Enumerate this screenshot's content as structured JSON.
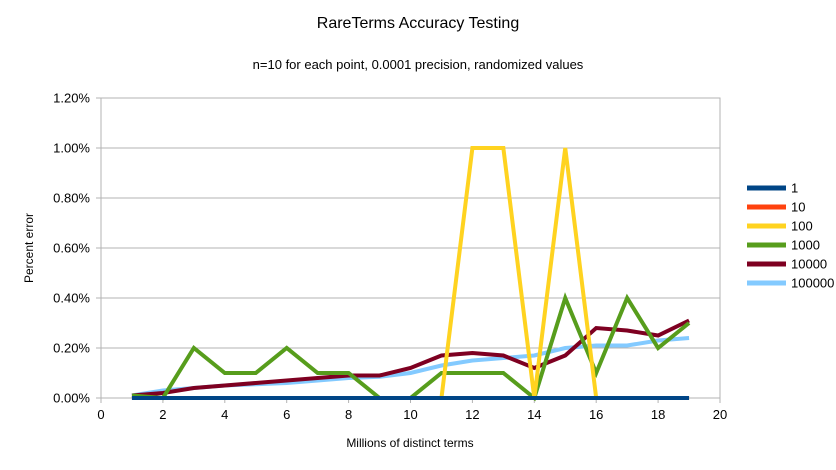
{
  "title": "RareTerms Accuracy Testing",
  "subtitle": "n=10 for each point, 0.0001 precision, randomized values",
  "chart_data": {
    "type": "line",
    "title": "RareTerms Accuracy Testing",
    "subtitle": "n=10 for each point, 0.0001 precision, randomized values",
    "xlabel": "Millions of distinct terms",
    "ylabel": "Percent error",
    "xlim": [
      0,
      20
    ],
    "ylim": [
      0,
      1.2
    ],
    "grid": "horizontal",
    "legend_position": "right",
    "x_ticks": [
      0,
      2,
      4,
      6,
      8,
      10,
      12,
      14,
      16,
      18,
      20
    ],
    "x_tick_labels": [
      "0",
      "2",
      "4",
      "6",
      "8",
      "10",
      "12",
      "14",
      "16",
      "18",
      "20"
    ],
    "y_ticks": [
      0,
      0.2,
      0.4,
      0.6,
      0.8,
      1.0,
      1.2
    ],
    "y_tick_labels": [
      "0.00%",
      "0.20%",
      "0.40%",
      "0.60%",
      "0.80%",
      "1.00%",
      "1.20%"
    ],
    "x": [
      1,
      2,
      3,
      4,
      5,
      6,
      7,
      8,
      9,
      10,
      11,
      12,
      13,
      14,
      15,
      16,
      17,
      18,
      19
    ],
    "series": [
      {
        "name": "1",
        "color": "#004586",
        "values": [
          0,
          0,
          0,
          0,
          0,
          0,
          0,
          0,
          0,
          0,
          0,
          0,
          0,
          0,
          0,
          0,
          0,
          0,
          0
        ]
      },
      {
        "name": "10",
        "color": "#FF420E",
        "values": [
          0,
          0,
          0,
          0,
          0,
          0,
          0,
          0,
          0,
          0,
          0,
          0,
          0,
          0,
          0,
          0,
          0,
          0,
          0
        ]
      },
      {
        "name": "100",
        "color": "#FFD320",
        "values": [
          0,
          0,
          0,
          0,
          0,
          0,
          0,
          0,
          0,
          0,
          0,
          1.0,
          1.0,
          0,
          1.0,
          0,
          0,
          0,
          0
        ]
      },
      {
        "name": "1000",
        "color": "#579D1C",
        "values": [
          0.01,
          0,
          0.2,
          0.1,
          0.1,
          0.2,
          0.1,
          0.1,
          0,
          0,
          0.1,
          0.1,
          0.1,
          0,
          0.4,
          0.1,
          0.4,
          0.2,
          0.3
        ]
      },
      {
        "name": "10000",
        "color": "#7E0021",
        "values": [
          0.01,
          0.02,
          0.04,
          0.05,
          0.06,
          0.07,
          0.08,
          0.09,
          0.09,
          0.12,
          0.17,
          0.18,
          0.17,
          0.12,
          0.17,
          0.28,
          0.27,
          0.25,
          0.31
        ]
      },
      {
        "name": "100000",
        "color": "#83CAFF",
        "values": [
          0.01,
          0.03,
          0.04,
          0.05,
          0.055,
          0.06,
          0.07,
          0.08,
          0.085,
          0.1,
          0.13,
          0.15,
          0.16,
          0.17,
          0.2,
          0.21,
          0.21,
          0.23,
          0.24
        ]
      }
    ],
    "grid_color": "#b3b3b3"
  }
}
